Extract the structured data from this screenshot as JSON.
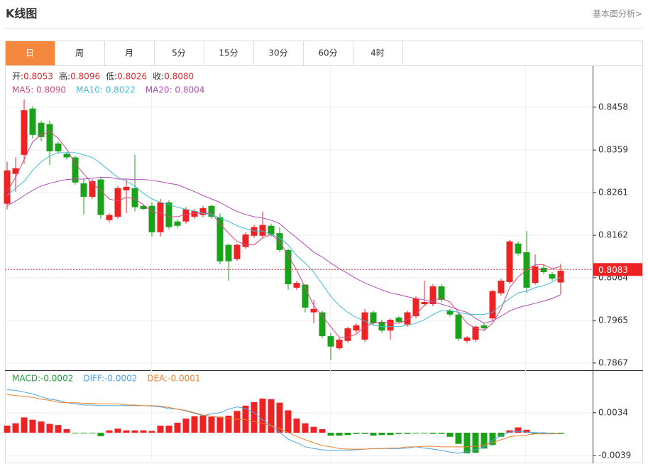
{
  "header": {
    "title": "K线图",
    "link": "基本面分析>"
  },
  "tabs": [
    "日",
    "周",
    "月",
    "5分",
    "15分",
    "30分",
    "60分",
    "4时"
  ],
  "active_tab": 0,
  "quote": [
    {
      "label": "开:",
      "value": "0.8053"
    },
    {
      "label": "高:",
      "value": "0.8096"
    },
    {
      "label": "低:",
      "value": "0.8026"
    },
    {
      "label": "收:",
      "value": "0.8080"
    }
  ],
  "chart_data": [
    {
      "type": "candlestick",
      "up_color": "#ee2222",
      "down_color": "#1aa31a",
      "ylim": [
        0.7852,
        0.8553
      ],
      "yticks": [
        0.8458,
        0.8359,
        0.8261,
        0.8162,
        0.8064,
        0.7965,
        0.7867
      ],
      "grid": true,
      "last_price": 0.8083,
      "ohlc": [
        [
          0.8235,
          0.8332,
          0.8222,
          0.8312
        ],
        [
          0.8304,
          0.8342,
          0.8263,
          0.8317
        ],
        [
          0.8348,
          0.8476,
          0.8328,
          0.8451
        ],
        [
          0.8455,
          0.846,
          0.8386,
          0.8394
        ],
        [
          0.8422,
          0.8427,
          0.8379,
          0.8389
        ],
        [
          0.8419,
          0.8427,
          0.8325,
          0.8356
        ],
        [
          0.8374,
          0.8379,
          0.8351,
          0.8356
        ],
        [
          0.835,
          0.8355,
          0.8337,
          0.8342
        ],
        [
          0.8342,
          0.8346,
          0.8279,
          0.8284
        ],
        [
          0.8282,
          0.8291,
          0.821,
          0.8251
        ],
        [
          0.8251,
          0.8292,
          0.8246,
          0.8287
        ],
        [
          0.8291,
          0.8296,
          0.82,
          0.8209
        ],
        [
          0.8197,
          0.8213,
          0.8192,
          0.8209
        ],
        [
          0.8205,
          0.8276,
          0.82,
          0.8271
        ],
        [
          0.8266,
          0.8292,
          0.8213,
          0.8274
        ],
        [
          0.8271,
          0.8348,
          0.8217,
          0.8227
        ],
        [
          0.823,
          0.8233,
          0.822,
          0.8223
        ],
        [
          0.823,
          0.8238,
          0.8159,
          0.8169
        ],
        [
          0.8169,
          0.8246,
          0.8159,
          0.8238
        ],
        [
          0.8238,
          0.8243,
          0.8176,
          0.8181
        ],
        [
          0.8194,
          0.8199,
          0.8179,
          0.8184
        ],
        [
          0.8194,
          0.8227,
          0.8189,
          0.8222
        ],
        [
          0.8205,
          0.8223,
          0.82,
          0.8218
        ],
        [
          0.8209,
          0.823,
          0.8204,
          0.8225
        ],
        [
          0.823,
          0.8233,
          0.82,
          0.8205
        ],
        [
          0.8204,
          0.8213,
          0.8095,
          0.8102
        ],
        [
          0.814,
          0.8143,
          0.8057,
          0.8102
        ],
        [
          0.8107,
          0.8143,
          0.8103,
          0.814
        ],
        [
          0.8135,
          0.8169,
          0.8131,
          0.8164
        ],
        [
          0.8161,
          0.8186,
          0.8156,
          0.8181
        ],
        [
          0.8161,
          0.8217,
          0.8156,
          0.8186
        ],
        [
          0.8184,
          0.8189,
          0.8159,
          0.8164
        ],
        [
          0.8167,
          0.8181,
          0.8123,
          0.8128
        ],
        [
          0.8128,
          0.8131,
          0.8036,
          0.8049
        ],
        [
          0.8041,
          0.8057,
          0.8036,
          0.8052
        ],
        [
          0.8048,
          0.8049,
          0.7984,
          0.7995
        ],
        [
          0.7984,
          0.8013,
          0.7959,
          0.7992
        ],
        [
          0.7984,
          0.7988,
          0.7924,
          0.7929
        ],
        [
          0.7929,
          0.7936,
          0.7874,
          0.7905
        ],
        [
          0.7901,
          0.7926,
          0.7897,
          0.7921
        ],
        [
          0.7918,
          0.7951,
          0.7913,
          0.7947
        ],
        [
          0.7942,
          0.7959,
          0.7937,
          0.7954
        ],
        [
          0.7921,
          0.7992,
          0.7916,
          0.7984
        ],
        [
          0.7984,
          0.7988,
          0.7954,
          0.7959
        ],
        [
          0.7962,
          0.7967,
          0.7937,
          0.7942
        ],
        [
          0.7942,
          0.797,
          0.7921,
          0.7967
        ],
        [
          0.7972,
          0.7975,
          0.7959,
          0.7962
        ],
        [
          0.7956,
          0.7988,
          0.7951,
          0.7984
        ],
        [
          0.7975,
          0.8021,
          0.797,
          0.8016
        ],
        [
          0.8003,
          0.8057,
          0.7998,
          0.8008
        ],
        [
          0.8003,
          0.8049,
          0.7998,
          0.8044
        ],
        [
          0.8044,
          0.8049,
          0.8008,
          0.8013
        ],
        [
          0.7988,
          0.7992,
          0.7974,
          0.7979
        ],
        [
          0.7979,
          0.7984,
          0.7918,
          0.7923
        ],
        [
          0.7918,
          0.7929,
          0.7913,
          0.7926
        ],
        [
          0.7921,
          0.7954,
          0.7916,
          0.7951
        ],
        [
          0.7954,
          0.7959,
          0.7942,
          0.7947
        ],
        [
          0.797,
          0.8036,
          0.7965,
          0.8033
        ],
        [
          0.8028,
          0.8062,
          0.8023,
          0.8057
        ],
        [
          0.8054,
          0.8151,
          0.8049,
          0.8148
        ],
        [
          0.8143,
          0.8148,
          0.8115,
          0.812
        ],
        [
          0.8123,
          0.8172,
          0.8029,
          0.8041
        ],
        [
          0.8052,
          0.8118,
          0.8048,
          0.809
        ],
        [
          0.8087,
          0.8095,
          0.8072,
          0.8077
        ],
        [
          0.8072,
          0.8077,
          0.8057,
          0.8062
        ],
        [
          0.8053,
          0.8096,
          0.8026,
          0.808
        ]
      ],
      "series": [
        {
          "name": "MA5: 0.8090",
          "color": "#d9457e",
          "values": [
            0.8263,
            0.8296,
            0.8337,
            0.8378,
            0.8394,
            0.8402,
            0.8386,
            0.8361,
            0.8328,
            0.8304,
            0.8282,
            0.8266,
            0.8246,
            0.8241,
            0.825,
            0.8246,
            0.8233,
            0.8217,
            0.8213,
            0.8205,
            0.8205,
            0.821,
            0.8213,
            0.8213,
            0.8213,
            0.8189,
            0.8167,
            0.8148,
            0.814,
            0.814,
            0.8156,
            0.8164,
            0.8148,
            0.8115,
            0.8082,
            0.8041,
            0.8,
            0.7975,
            0.7951,
            0.7926,
            0.7926,
            0.7934,
            0.7951,
            0.7959,
            0.7962,
            0.7959,
            0.7959,
            0.7967,
            0.798,
            0.8,
            0.8013,
            0.8016,
            0.8008,
            0.7984,
            0.7959,
            0.7947,
            0.7942,
            0.7959,
            0.7992,
            0.8041,
            0.8066,
            0.8082,
            0.8094,
            0.8094,
            0.8085,
            0.809
          ]
        },
        {
          "name": "MA10: 0.8022",
          "color": "#3ebcd6",
          "values": [
            0.8254,
            0.8271,
            0.8287,
            0.8312,
            0.8332,
            0.8345,
            0.8353,
            0.8353,
            0.8353,
            0.8348,
            0.8342,
            0.8328,
            0.8312,
            0.8296,
            0.8287,
            0.8276,
            0.8259,
            0.8246,
            0.8238,
            0.8233,
            0.8227,
            0.8222,
            0.8218,
            0.8213,
            0.821,
            0.8202,
            0.8194,
            0.8184,
            0.8177,
            0.8172,
            0.8172,
            0.8164,
            0.8156,
            0.814,
            0.8115,
            0.8098,
            0.8077,
            0.8049,
            0.8021,
            0.8,
            0.7984,
            0.7972,
            0.7964,
            0.7954,
            0.7951,
            0.7951,
            0.7951,
            0.7954,
            0.7959,
            0.7967,
            0.7979,
            0.7988,
            0.7988,
            0.7984,
            0.798,
            0.7979,
            0.7979,
            0.7984,
            0.8,
            0.8016,
            0.8029,
            0.8033,
            0.8041,
            0.8046,
            0.8054,
            0.8066
          ]
        },
        {
          "name": "MA20: 0.8004",
          "color": "#b04cb8",
          "values": [
            0.823,
            0.8241,
            0.8254,
            0.8266,
            0.8276,
            0.8282,
            0.8287,
            0.8291,
            0.8292,
            0.8292,
            0.8294,
            0.8296,
            0.8296,
            0.8292,
            0.8292,
            0.8291,
            0.8291,
            0.8289,
            0.8286,
            0.8282,
            0.8279,
            0.8271,
            0.8263,
            0.8254,
            0.8246,
            0.8238,
            0.8227,
            0.8217,
            0.821,
            0.8205,
            0.8202,
            0.8197,
            0.8189,
            0.8172,
            0.8156,
            0.814,
            0.8123,
            0.8112,
            0.8098,
            0.8085,
            0.8074,
            0.8062,
            0.8052,
            0.8044,
            0.8036,
            0.8029,
            0.8025,
            0.802,
            0.8016,
            0.8013,
            0.8008,
            0.8003,
            0.7997,
            0.799,
            0.7984,
            0.797,
            0.7959,
            0.7964,
            0.7975,
            0.7987,
            0.7995,
            0.8,
            0.8005,
            0.801,
            0.8016,
            0.8025
          ]
        }
      ]
    },
    {
      "type": "macd",
      "up_color": "#ee2222",
      "down_color": "#1aa31a",
      "ylim": [
        -0.0052,
        0.0105
      ],
      "yticks": [
        0.0034,
        -0.0039
      ],
      "grid": true,
      "series": [
        {
          "name": "MACD:-0.0002",
          "color": "#1f9e3a",
          "style": "bar",
          "values": [
            0.0012,
            0.0016,
            0.0026,
            0.0022,
            0.0019,
            0.0015,
            0.0013,
            0.0006,
            -0.0001,
            -0.0001,
            -0.0001,
            -0.0006,
            0.0004,
            0.0007,
            0.0004,
            0.0004,
            0.0004,
            0.0003,
            0.0012,
            0.0012,
            0.0017,
            0.0024,
            0.0028,
            0.0029,
            0.0027,
            0.0027,
            0.0029,
            0.0037,
            0.0046,
            0.0052,
            0.0058,
            0.0057,
            0.0051,
            0.0038,
            0.0024,
            0.0016,
            0.001,
            0.0006,
            -0.0005,
            -0.0005,
            -0.0004,
            -0.0002,
            -0.0002,
            -0.0005,
            -0.0004,
            -0.0004,
            -0.0002,
            -0.0002,
            -0.0001,
            -0.0001,
            -0.0002,
            -0.0002,
            -0.0007,
            -0.0019,
            -0.0035,
            -0.0034,
            -0.0027,
            -0.0021,
            -0.0007,
            0.0004,
            0.0009,
            0.0005,
            -0.0002,
            -0.0001,
            -0.0001,
            -0.0002
          ]
        },
        {
          "name": "DIFF:-0.0002",
          "color": "#4aa3df",
          "style": "line",
          "values": [
            0.0073,
            0.0072,
            0.0069,
            0.0066,
            0.0061,
            0.0057,
            0.0055,
            0.0051,
            0.0049,
            0.0047,
            0.0047,
            0.0046,
            0.0046,
            0.0046,
            0.0046,
            0.0046,
            0.0046,
            0.0045,
            0.0044,
            0.0041,
            0.004,
            0.0037,
            0.0033,
            0.0029,
            0.0032,
            0.0034,
            0.004,
            0.0044,
            0.0041,
            0.0034,
            0.0022,
            0.0012,
            0.0001,
            -0.0011,
            -0.0017,
            -0.0024,
            -0.0027,
            -0.0029,
            -0.003,
            -0.003,
            -0.003,
            -0.0029,
            -0.0028,
            -0.0027,
            -0.0027,
            -0.0027,
            -0.0027,
            -0.0026,
            -0.0024,
            -0.0026,
            -0.0028,
            -0.003,
            -0.0033,
            -0.0035,
            -0.0032,
            -0.0029,
            -0.0024,
            -0.0013,
            -0.0005,
            0.0001,
            0.0002,
            0.0001,
            0,
            0,
            -0.0001,
            -0.0002
          ]
        },
        {
          "name": "DEA:-0.0001",
          "color": "#f0802a",
          "style": "line",
          "values": [
            0.0065,
            0.0063,
            0.0062,
            0.006,
            0.0057,
            0.0055,
            0.0052,
            0.0051,
            0.0051,
            0.005,
            0.005,
            0.0049,
            0.0049,
            0.0049,
            0.0047,
            0.0047,
            0.0046,
            0.0046,
            0.0045,
            0.0043,
            0.004,
            0.0038,
            0.0034,
            0.003,
            0.0028,
            0.0026,
            0.0024,
            0.0023,
            0.0022,
            0.0019,
            0.0016,
            0.0012,
            0.0007,
            0,
            -0.0006,
            -0.0012,
            -0.0017,
            -0.0022,
            -0.0024,
            -0.0027,
            -0.0028,
            -0.0028,
            -0.0028,
            -0.0027,
            -0.0027,
            -0.0026,
            -0.0026,
            -0.0024,
            -0.0024,
            -0.0023,
            -0.0023,
            -0.0024,
            -0.0024,
            -0.0024,
            -0.0024,
            -0.0023,
            -0.0021,
            -0.0017,
            -0.0012,
            -0.0007,
            -0.0005,
            -0.0004,
            -0.0002,
            -0.0002,
            -0.0002,
            -0.0001
          ]
        }
      ]
    }
  ]
}
